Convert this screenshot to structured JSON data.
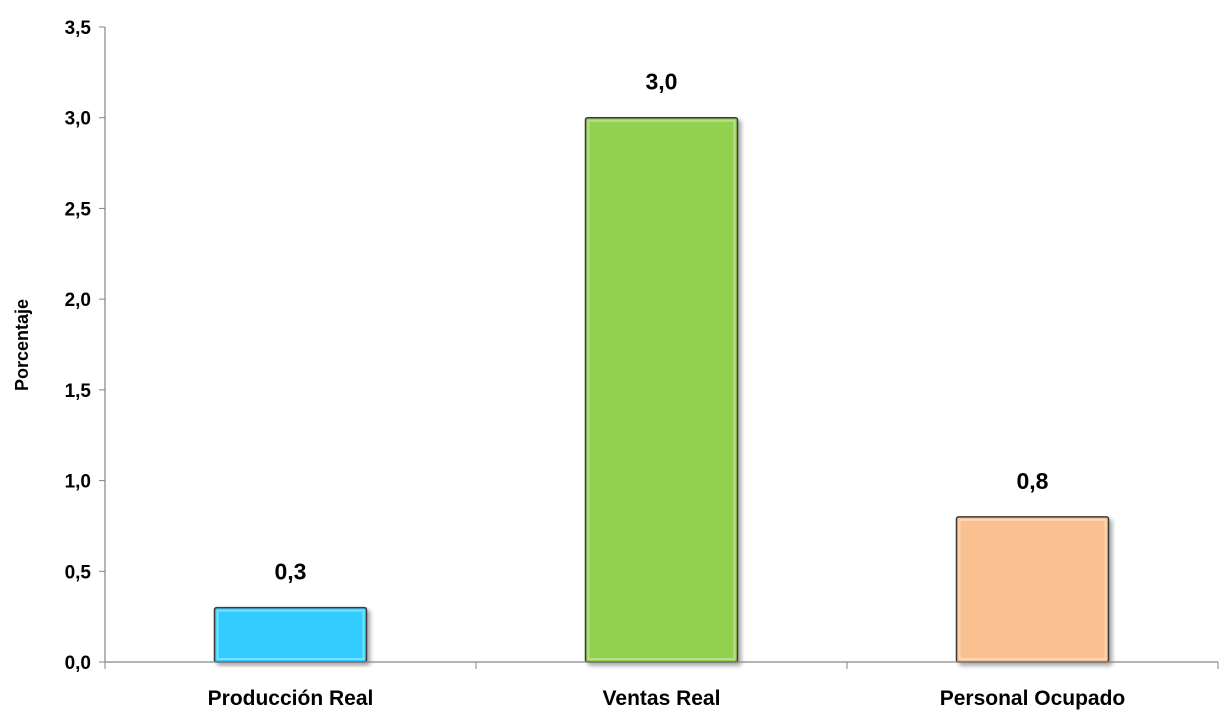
{
  "chart_data": {
    "type": "bar",
    "categories": [
      "Producción Real",
      "Ventas Real",
      "Personal Ocupado"
    ],
    "values": [
      0.3,
      3.0,
      0.8
    ],
    "value_labels": [
      "0,3",
      "3,0",
      "0,8"
    ],
    "colors": [
      "#33ccff",
      "#92d050",
      "#fac090"
    ],
    "ylabel": "Porcentaje",
    "ylim": [
      0,
      3.5
    ],
    "yticks": [
      0.0,
      0.5,
      1.0,
      1.5,
      2.0,
      2.5,
      3.0,
      3.5
    ],
    "ytick_labels": [
      "0,0",
      "0,5",
      "1,0",
      "1,5",
      "2,0",
      "2,5",
      "3,0",
      "3,5"
    ],
    "grid": false,
    "legend": "none"
  }
}
